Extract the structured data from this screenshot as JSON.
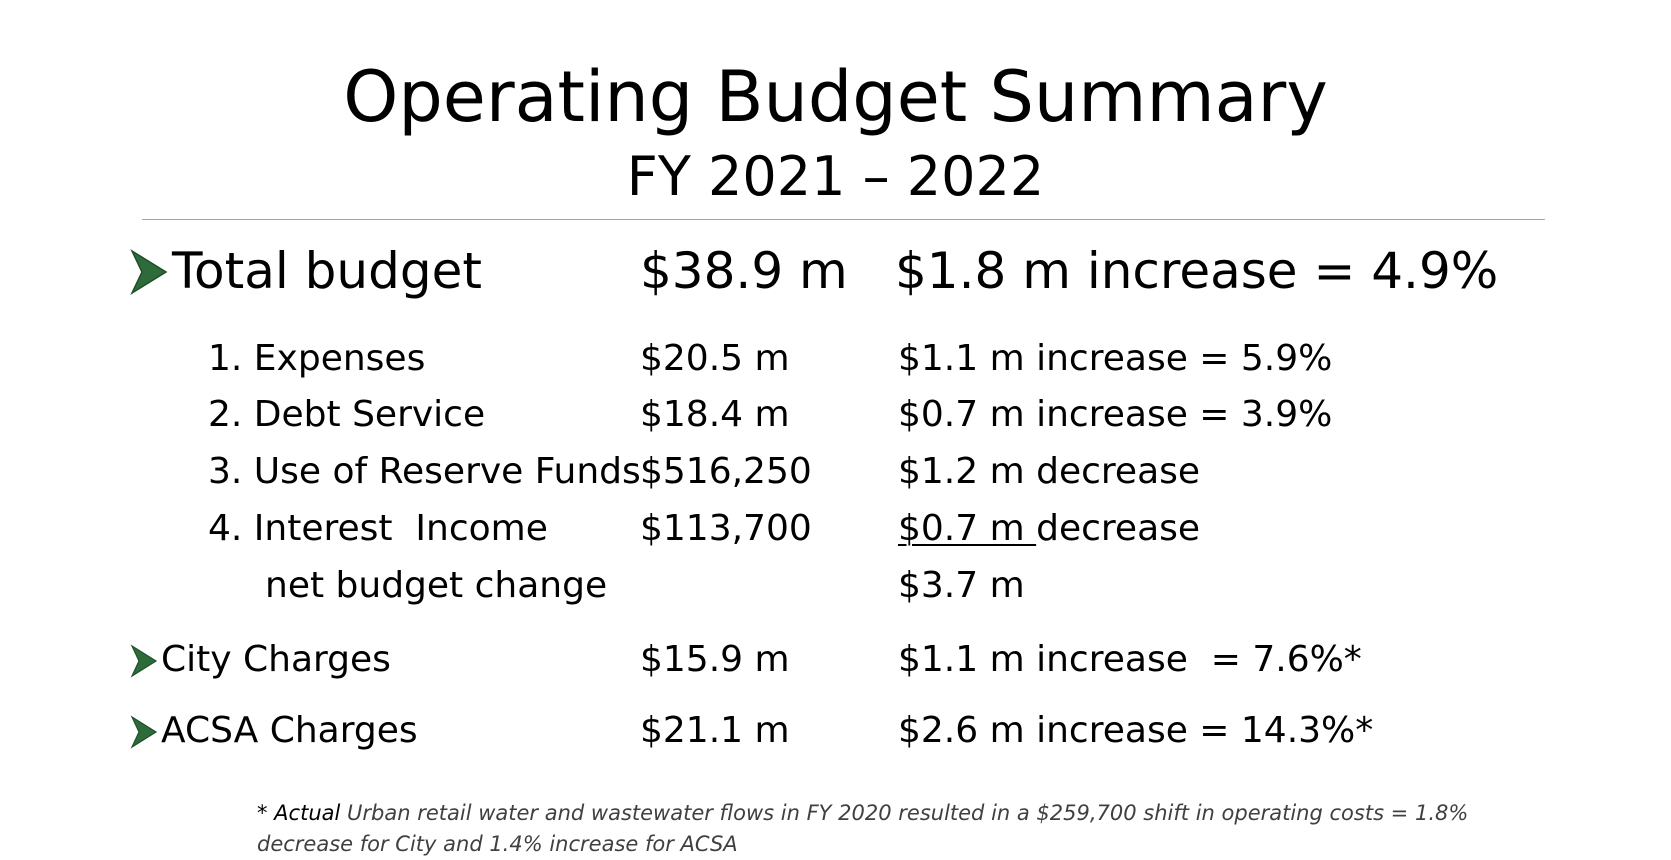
{
  "slide": {
    "title": "Operating Budget Summary",
    "subtitle": "FY 2021 – 2022"
  },
  "total": {
    "label": "Total budget",
    "amount": "$38.9 m",
    "change": "$1.8 m increase = 4.9%"
  },
  "items": [
    {
      "label": "1. Expenses",
      "amount": "$20.5 m",
      "change": "$1.1 m increase = 5.9%"
    },
    {
      "label": "2. Debt Service",
      "amount": "$18.4 m",
      "change": "$0.7 m increase = 3.9%"
    },
    {
      "label": "3. Use of Reserve Funds",
      "amount": "$516,250",
      "change": "$1.2 m decrease"
    },
    {
      "label": "4. Interest  Income",
      "amount": "$113,700",
      "change_underlined": "$0.7 m ",
      "change_rest": "decrease"
    }
  ],
  "net": {
    "label": "net budget change",
    "change": "$3.7 m"
  },
  "city": {
    "label": "City Charges",
    "amount": "$15.9 m",
    "change": "$1.1 m increase  = 7.6%*"
  },
  "acsa": {
    "label": "ACSA Charges",
    "amount": "$21.1 m",
    "change": "$2.6 m increase = 14.3%*"
  },
  "footnote": {
    "lead": "* Actual",
    "text": " Urban retail water and wastewater flows in FY 2020 resulted in a $259,700 shift in operating costs = 1.8% decrease for City and 1.4% increase for ACSA"
  },
  "colors": {
    "arrow": "#2e6b3a",
    "rule": "#a6a6a6",
    "footnote": "#404040"
  },
  "icons": {
    "bullet": "arrowhead-bullet-icon"
  }
}
